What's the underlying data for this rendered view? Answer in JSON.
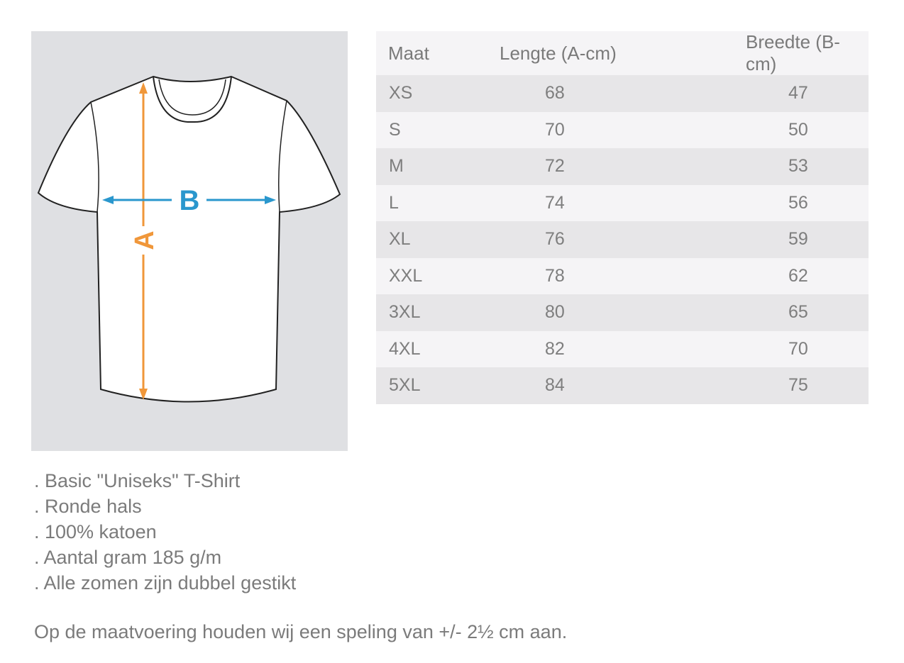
{
  "diagram": {
    "length_label": "A",
    "width_label": "B",
    "colors": {
      "length_arrow": "#f0973a",
      "width_arrow": "#2a97cd",
      "background": "#dfe0e3"
    }
  },
  "size_table": {
    "headers": [
      "Maat",
      "Lengte (A-cm)",
      "Breedte (B-cm)"
    ],
    "rows": [
      [
        "XS",
        "68",
        "47"
      ],
      [
        "S",
        "70",
        "50"
      ],
      [
        "M",
        "72",
        "53"
      ],
      [
        "L",
        "74",
        "56"
      ],
      [
        "XL",
        "76",
        "59"
      ],
      [
        "XXL",
        "78",
        "62"
      ],
      [
        "3XL",
        "80",
        "65"
      ],
      [
        "4XL",
        "82",
        "70"
      ],
      [
        "5XL",
        "84",
        "75"
      ]
    ]
  },
  "features": [
    ". Basic \"Uniseks\" T-Shirt",
    ". Ronde hals",
    ". 100% katoen",
    ". Aantal gram 185 g/m",
    ". Alle zomen zijn dubbel gestikt"
  ],
  "note": "Op de maatvoering houden wij een speling van +/- 2½ cm aan."
}
